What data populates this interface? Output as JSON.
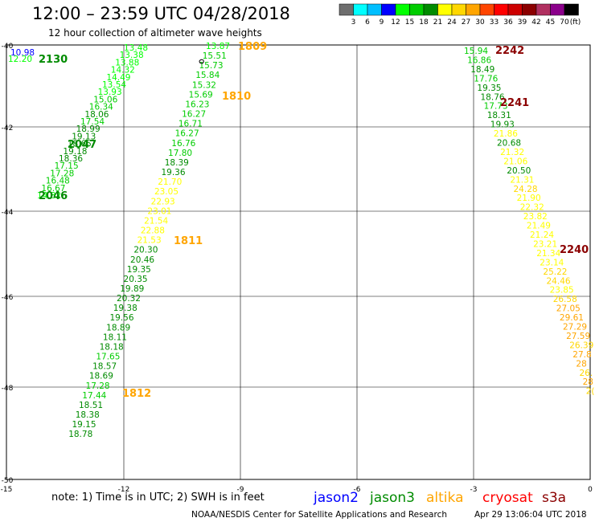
{
  "title": "12:00 – 23:59 UTC 04/28/2018",
  "subtitle": "12 hour collection of altimeter wave heights",
  "colorbar": {
    "unit": "(ft)",
    "labels": [
      "3",
      "6",
      "9",
      "12",
      "15",
      "18",
      "21",
      "24",
      "27",
      "30",
      "33",
      "36",
      "39",
      "42",
      "45",
      "70"
    ],
    "colors": [
      "#6e6e6e",
      "#00ffff",
      "#00bfff",
      "#0000ff",
      "#00ff00",
      "#00cd00",
      "#008b00",
      "#ffff00",
      "#ffd700",
      "#ffa500",
      "#ff4500",
      "#ff0000",
      "#cd0000",
      "#8b0000",
      "#b03060",
      "#8b008b",
      "#000000"
    ]
  },
  "axes": {
    "lat_labels": [
      "-40",
      "-42",
      "-44",
      "-46",
      "-48",
      "-50"
    ],
    "lon_labels": [
      "-15",
      "-12",
      "-9",
      "-6",
      "-3",
      "0"
    ]
  },
  "tracks": [
    {
      "name": "track-a",
      "values": [
        {
          "v": "10.98",
          "c": "#0000ff"
        },
        {
          "v": "12.20",
          "c": "#00ff00"
        }
      ],
      "time": {
        "text": "2130",
        "c": "#008b00"
      }
    },
    {
      "name": "track-b",
      "values": [
        {
          "v": "13.48",
          "c": "#00ff00"
        },
        {
          "v": "13.38",
          "c": "#00ff00"
        },
        {
          "v": "13.88",
          "c": "#00ff00"
        },
        {
          "v": "14.32",
          "c": "#00ff00"
        },
        {
          "v": "14.49",
          "c": "#00ff00"
        },
        {
          "v": "13.54",
          "c": "#00ff00"
        },
        {
          "v": "13.93",
          "c": "#00ff00"
        },
        {
          "v": "15.06",
          "c": "#00cd00"
        },
        {
          "v": "16.34",
          "c": "#00cd00"
        },
        {
          "v": "18.06",
          "c": "#008b00"
        },
        {
          "v": "17.54",
          "c": "#00cd00"
        },
        {
          "v": "18.99",
          "c": "#008b00"
        },
        {
          "v": "19.13",
          "c": "#008b00"
        },
        {
          "v": "18.65",
          "c": "#008b00"
        },
        {
          "v": "19.18",
          "c": "#008b00"
        },
        {
          "v": "18.36",
          "c": "#008b00"
        },
        {
          "v": "17.15",
          "c": "#00cd00"
        },
        {
          "v": "17.28",
          "c": "#00cd00"
        },
        {
          "v": "16.48",
          "c": "#00cd00"
        },
        {
          "v": "16.67",
          "c": "#00cd00"
        },
        {
          "v": "14.82",
          "c": "#00ff00"
        }
      ],
      "times": [
        {
          "text": "2047",
          "c": "#008b00"
        },
        {
          "text": "2046",
          "c": "#008b00"
        }
      ]
    },
    {
      "name": "track-c",
      "values": [
        {
          "v": "13.87",
          "c": "#00ff00"
        },
        {
          "v": "15.51",
          "c": "#00cd00"
        },
        {
          "v": "15.73",
          "c": "#00cd00"
        },
        {
          "v": "15.84",
          "c": "#00cd00"
        },
        {
          "v": "15.32",
          "c": "#00cd00"
        },
        {
          "v": "15.69",
          "c": "#00cd00"
        },
        {
          "v": "16.23",
          "c": "#00cd00"
        },
        {
          "v": "16.27",
          "c": "#00cd00"
        },
        {
          "v": "16.71",
          "c": "#00cd00"
        },
        {
          "v": "16.27",
          "c": "#00cd00"
        },
        {
          "v": "16.76",
          "c": "#00cd00"
        },
        {
          "v": "17.80",
          "c": "#00cd00"
        },
        {
          "v": "18.39",
          "c": "#008b00"
        },
        {
          "v": "19.36",
          "c": "#008b00"
        },
        {
          "v": "21.70",
          "c": "#ffff00"
        },
        {
          "v": "23.05",
          "c": "#ffff00"
        },
        {
          "v": "22.93",
          "c": "#ffff00"
        },
        {
          "v": "23.01",
          "c": "#ffff00"
        },
        {
          "v": "21.54",
          "c": "#ffff00"
        },
        {
          "v": "22.88",
          "c": "#ffff00"
        },
        {
          "v": "21.53",
          "c": "#ffff00"
        },
        {
          "v": "20.30",
          "c": "#008b00"
        },
        {
          "v": "20.46",
          "c": "#008b00"
        },
        {
          "v": "19.35",
          "c": "#008b00"
        },
        {
          "v": "20.35",
          "c": "#008b00"
        },
        {
          "v": "19.89",
          "c": "#008b00"
        },
        {
          "v": "20.32",
          "c": "#008b00"
        },
        {
          "v": "19.38",
          "c": "#008b00"
        },
        {
          "v": "19.56",
          "c": "#008b00"
        },
        {
          "v": "18.89",
          "c": "#008b00"
        },
        {
          "v": "18.11",
          "c": "#008b00"
        },
        {
          "v": "18.18",
          "c": "#008b00"
        },
        {
          "v": "17.65",
          "c": "#00cd00"
        },
        {
          "v": "18.57",
          "c": "#008b00"
        },
        {
          "v": "18.69",
          "c": "#008b00"
        },
        {
          "v": "17.28",
          "c": "#00cd00"
        },
        {
          "v": "17.44",
          "c": "#00cd00"
        },
        {
          "v": "18.51",
          "c": "#008b00"
        },
        {
          "v": "18.38",
          "c": "#008b00"
        },
        {
          "v": "19.15",
          "c": "#008b00"
        },
        {
          "v": "18.78",
          "c": "#008b00"
        }
      ],
      "times": [
        {
          "text": "1809",
          "c": "#ffa500"
        },
        {
          "text": "1810",
          "c": "#ffa500"
        },
        {
          "text": "1811",
          "c": "#ffa500"
        },
        {
          "text": "1812",
          "c": "#ffa500"
        }
      ]
    },
    {
      "name": "track-d",
      "values": [
        {
          "v": "15.94",
          "c": "#00cd00"
        },
        {
          "v": "16.86",
          "c": "#00cd00"
        },
        {
          "v": "18.49",
          "c": "#008b00"
        },
        {
          "v": "17.76",
          "c": "#00cd00"
        },
        {
          "v": "19.35",
          "c": "#008b00"
        },
        {
          "v": "18.76",
          "c": "#008b00"
        },
        {
          "v": "17.73",
          "c": "#00cd00"
        },
        {
          "v": "18.31",
          "c": "#008b00"
        },
        {
          "v": "19.93",
          "c": "#008b00"
        },
        {
          "v": "21.86",
          "c": "#ffff00"
        },
        {
          "v": "20.68",
          "c": "#008b00"
        },
        {
          "v": "21.32",
          "c": "#ffff00"
        },
        {
          "v": "21.06",
          "c": "#ffff00"
        },
        {
          "v": "20.50",
          "c": "#008b00"
        },
        {
          "v": "21.31",
          "c": "#ffff00"
        },
        {
          "v": "24.28",
          "c": "#ffd700"
        },
        {
          "v": "21.90",
          "c": "#ffff00"
        },
        {
          "v": "22.32",
          "c": "#ffff00"
        },
        {
          "v": "23.82",
          "c": "#ffff00"
        },
        {
          "v": "21.49",
          "c": "#ffff00"
        },
        {
          "v": "21.24",
          "c": "#ffff00"
        },
        {
          "v": "23.21",
          "c": "#ffff00"
        },
        {
          "v": "21.34",
          "c": "#ffff00"
        },
        {
          "v": "23.14",
          "c": "#ffff00"
        },
        {
          "v": "25.22",
          "c": "#ffd700"
        },
        {
          "v": "24.46",
          "c": "#ffd700"
        },
        {
          "v": "23.85",
          "c": "#ffff00"
        },
        {
          "v": "26.58",
          "c": "#ffd700"
        },
        {
          "v": "27.05",
          "c": "#ffa500"
        },
        {
          "v": "29.61",
          "c": "#ffa500"
        },
        {
          "v": "27.29",
          "c": "#ffa500"
        },
        {
          "v": "27.59",
          "c": "#ffa500"
        },
        {
          "v": "26.39",
          "c": "#ffd700"
        },
        {
          "v": "27.8",
          "c": "#ffa500"
        },
        {
          "v": "28",
          "c": "#ffa500"
        },
        {
          "v": "26.",
          "c": "#ffd700"
        },
        {
          "v": "28",
          "c": "#ffa500"
        },
        {
          "v": "2(",
          "c": "#ffd700"
        }
      ],
      "times": [
        {
          "text": "2242",
          "c": "#8b0000"
        },
        {
          "text": "2241",
          "c": "#8b0000"
        },
        {
          "text": "2240",
          "c": "#8b0000"
        }
      ]
    }
  ],
  "note": "note: 1) Time is in UTC; 2) SWH is in feet",
  "satellites": [
    {
      "name": "jason2",
      "c": "#0000ff"
    },
    {
      "name": "jason3",
      "c": "#008b00"
    },
    {
      "name": "altika",
      "c": "#ffa500"
    },
    {
      "name": "cryosat",
      "c": "#ff0000"
    },
    {
      "name": "s3a",
      "c": "#8b0000"
    }
  ],
  "footer": {
    "credit": "NOAA/NESDIS Center for Satellite Applications and Research",
    "timestamp": "Apr 29 13:06:04 UTC 2018"
  }
}
